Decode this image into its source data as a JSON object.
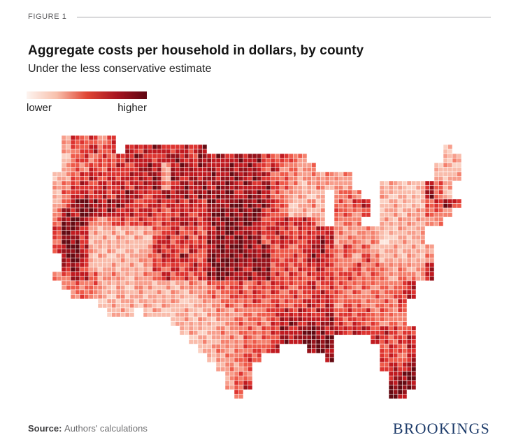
{
  "header": {
    "figure_label": "FIGURE 1",
    "title": "Aggregate costs per household in dollars, by county",
    "subtitle": "Under the less conservative estimate"
  },
  "legend": {
    "low_label": "lower",
    "high_label": "higher",
    "gradient": [
      "#fdf4f0",
      "#f8c0ac",
      "#e04634",
      "#a81521",
      "#5e0511"
    ]
  },
  "footer": {
    "source_label": "Source:",
    "source_text": "Authors' calculations",
    "brand": "BROOKINGS"
  },
  "chart_data": {
    "type": "heatmap",
    "subtype": "us-county-choropleth",
    "title": "Aggregate costs per household in dollars, by county",
    "subtitle": "Under the less conservative estimate",
    "unit": "dollars per household (relative, unlabeled continuous scale)",
    "scale": {
      "type": "continuous",
      "min_label": "lower",
      "max_label": "higher",
      "min_color": "#fff5f0",
      "max_color": "#5e0511"
    },
    "regional_pattern": [
      {
        "region": "Northern Plains (ND, SD, NE, KS, western MN, IA)",
        "level": "highest"
      },
      {
        "region": "Montana, Wyoming, Idaho",
        "level": "high"
      },
      {
        "region": "Pacific Northwest and Northern California / Central Valley",
        "level": "high"
      },
      {
        "region": "Illinois and Missouri corridor",
        "level": "high"
      },
      {
        "region": "Mississippi Delta, Louisiana, East Texas, Gulf Coast",
        "level": "high"
      },
      {
        "region": "Florida peninsula, especially South Florida",
        "level": "high"
      },
      {
        "region": "Vermont and coastal Massachusetts",
        "level": "high"
      },
      {
        "region": "Southwest (NV, UT, AZ, NM) and West Texas",
        "level": "low"
      },
      {
        "region": "Wisconsin, Michigan, Ohio Valley",
        "level": "low-medium"
      },
      {
        "region": "Appalachia (WV) and Mid-Atlantic (PA, NY, MD, VA)",
        "level": "low"
      },
      {
        "region": "Maine",
        "level": "low"
      }
    ],
    "map_grid": {
      "description": "Stylized 45x29 raster of the contiguous US; digits 0-9 encode relative cost intensity (9 = darkest red / highest cost), '.' = no land.",
      "palette": [
        "#fde8df",
        "#fbd2c4",
        "#f9bcab",
        "#f79e8c",
        "#f4806d",
        "#ee5a4a",
        "#dd3430",
        "#c01a20",
        "#96121a",
        "#640a12"
      ],
      "cell_size": 13,
      "rows": [
        ".365646......................................",
        ".356756.767876768..........................2.",
        ".256465678767876878787865654...............23",
        ".3546567678737878878787574534.............232",
        "235676767778387878788787554343434.........323",
        "346767676778478787887878654234343...23223753.",
        "257767678767878788897887543323.454..32322852.",
        "358987887667676769889888652342.5467.232225686",
        "487987877676567678988896652323.5546.23233554.",
        "589854565665678768898986676763.454..3233344..",
        "69873232323567565789887676566774334322333....",
        "59862323232675756898988567667873443412323....",
        "689732323237665768989878565678646453232323...",
        ".89723232345768659898889656587645364232324...",
        ".78632323236575768988798565667654645434347...",
        "458753432345756568988878656567656545435437...",
        ".454532324323234356564656656756554545457.....",
        "..45432423232323454565656565676545454567.....",
        ".....2323232332233454565655676746544546......",
        "......232.23223223434545676767856564545......",
        ".............23232345454678787865655454......",
        "..............23234345456878987767767656.....",
        "...............2323435456878989....76567.....",
        "................234345657...898.....5657.....",
        ".................234565.......8.....6657.....",
        "..................3435..............6768.....",
        "...................354...............789.....",
        "...................357...............898.....",
        "....................5................98......"
      ]
    }
  }
}
